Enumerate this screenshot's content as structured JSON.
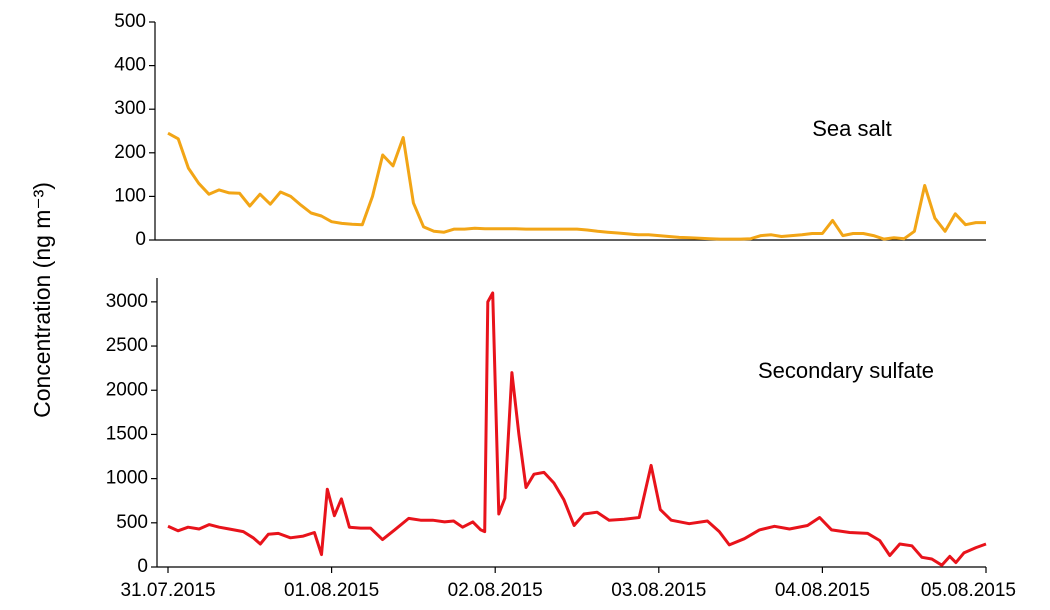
{
  "ylabel": "Concentration (ng m⁻³)",
  "chart_data": [
    {
      "type": "line",
      "x": [
        0,
        0.0625,
        0.125,
        0.1875,
        0.25,
        0.3125,
        0.375,
        0.4375,
        0.5,
        0.5625,
        0.625,
        0.6875,
        0.75,
        0.8125,
        0.875,
        0.9375,
        1,
        1.0625,
        1.125,
        1.1875,
        1.25,
        1.3125,
        1.375,
        1.4375,
        1.5,
        1.5625,
        1.625,
        1.6875,
        1.75,
        1.8125,
        1.875,
        1.9375,
        2,
        2.0625,
        2.125,
        2.1875,
        2.25,
        2.3125,
        2.375,
        2.4375,
        2.5,
        2.5625,
        2.625,
        2.6875,
        2.75,
        2.8125,
        2.875,
        2.9375,
        3,
        3.0625,
        3.125,
        3.1875,
        3.25,
        3.3125,
        3.375,
        3.4375,
        3.5,
        3.5625,
        3.625,
        3.6875,
        3.75,
        3.8125,
        3.875,
        3.9375,
        4,
        4.0625,
        4.125,
        4.1875,
        4.25,
        4.3125,
        4.375,
        4.4375,
        4.5,
        4.5625,
        4.625,
        4.6875,
        4.75,
        4.8125,
        4.875,
        4.9375,
        5
      ],
      "series": [
        {
          "name": "Sea salt",
          "color": "#f2a516",
          "values": [
            245,
            232,
            165,
            130,
            105,
            115,
            108,
            107,
            78,
            105,
            82,
            110,
            100,
            80,
            62,
            55,
            42,
            38,
            36,
            35,
            100,
            195,
            170,
            235,
            85,
            30,
            20,
            18,
            25,
            25,
            27,
            26,
            26,
            26,
            26,
            25,
            25,
            25,
            25,
            25,
            25,
            23,
            20,
            18,
            16,
            14,
            12,
            12,
            10,
            8,
            6,
            5,
            4,
            3,
            2,
            2,
            2,
            3,
            10,
            12,
            8,
            10,
            12,
            15,
            15,
            45,
            10,
            15,
            15,
            10,
            2,
            5,
            3,
            20,
            125,
            50,
            20,
            60,
            35,
            40,
            40
          ]
        }
      ],
      "xlim": [
        0,
        5
      ],
      "ylim": [
        0,
        500
      ],
      "yticks": [
        0,
        100,
        200,
        300,
        400,
        500
      ]
    },
    {
      "type": "line",
      "x": [
        0,
        0.061,
        0.123,
        0.19,
        0.251,
        0.313,
        0.374,
        0.46,
        0.521,
        0.564,
        0.613,
        0.674,
        0.748,
        0.827,
        0.895,
        0.938,
        0.974,
        1.017,
        1.06,
        1.109,
        1.176,
        1.238,
        1.311,
        1.385,
        1.471,
        1.544,
        1.618,
        1.691,
        1.746,
        1.801,
        1.863,
        1.912,
        1.936,
        1.955,
        1.985,
        2.022,
        2.059,
        2.102,
        2.145,
        2.188,
        2.237,
        2.298,
        2.359,
        2.42,
        2.482,
        2.543,
        2.623,
        2.696,
        2.788,
        2.88,
        2.953,
        3.009,
        3.076,
        3.186,
        3.297,
        3.37,
        3.431,
        3.523,
        3.615,
        3.707,
        3.799,
        3.909,
        3.983,
        4.056,
        4.167,
        4.277,
        4.35,
        4.412,
        4.473,
        4.547,
        4.608,
        4.669,
        4.73,
        4.779,
        4.816,
        4.865,
        4.939,
        5
      ],
      "series": [
        {
          "name": "Secondary sulfate",
          "color": "#e8131b",
          "values": [
            460,
            410,
            450,
            430,
            480,
            450,
            430,
            400,
            330,
            260,
            370,
            380,
            330,
            350,
            390,
            140,
            880,
            580,
            770,
            450,
            440,
            440,
            310,
            420,
            550,
            530,
            530,
            510,
            520,
            450,
            510,
            420,
            400,
            3000,
            3100,
            600,
            780,
            2200,
            1500,
            900,
            1050,
            1070,
            950,
            760,
            470,
            600,
            620,
            530,
            540,
            560,
            1150,
            650,
            530,
            490,
            520,
            400,
            250,
            320,
            420,
            460,
            430,
            470,
            560,
            420,
            390,
            380,
            300,
            130,
            260,
            240,
            110,
            90,
            20,
            120,
            50,
            160,
            220,
            260
          ]
        }
      ],
      "xlim": [
        0,
        5
      ],
      "xticks": [
        {
          "value": 0,
          "label": "31.07.2015"
        },
        {
          "value": 1,
          "label": "01.08.2015"
        },
        {
          "value": 2,
          "label": "02.08.2015"
        },
        {
          "value": 3,
          "label": "03.08.2015"
        },
        {
          "value": 4,
          "label": "04.08.2015"
        },
        {
          "value": 5,
          "label": "05.08.2015"
        }
      ],
      "ylim": [
        0,
        3270
      ],
      "yticks": [
        0,
        500,
        1000,
        1500,
        2000,
        2500,
        3000
      ]
    }
  ]
}
